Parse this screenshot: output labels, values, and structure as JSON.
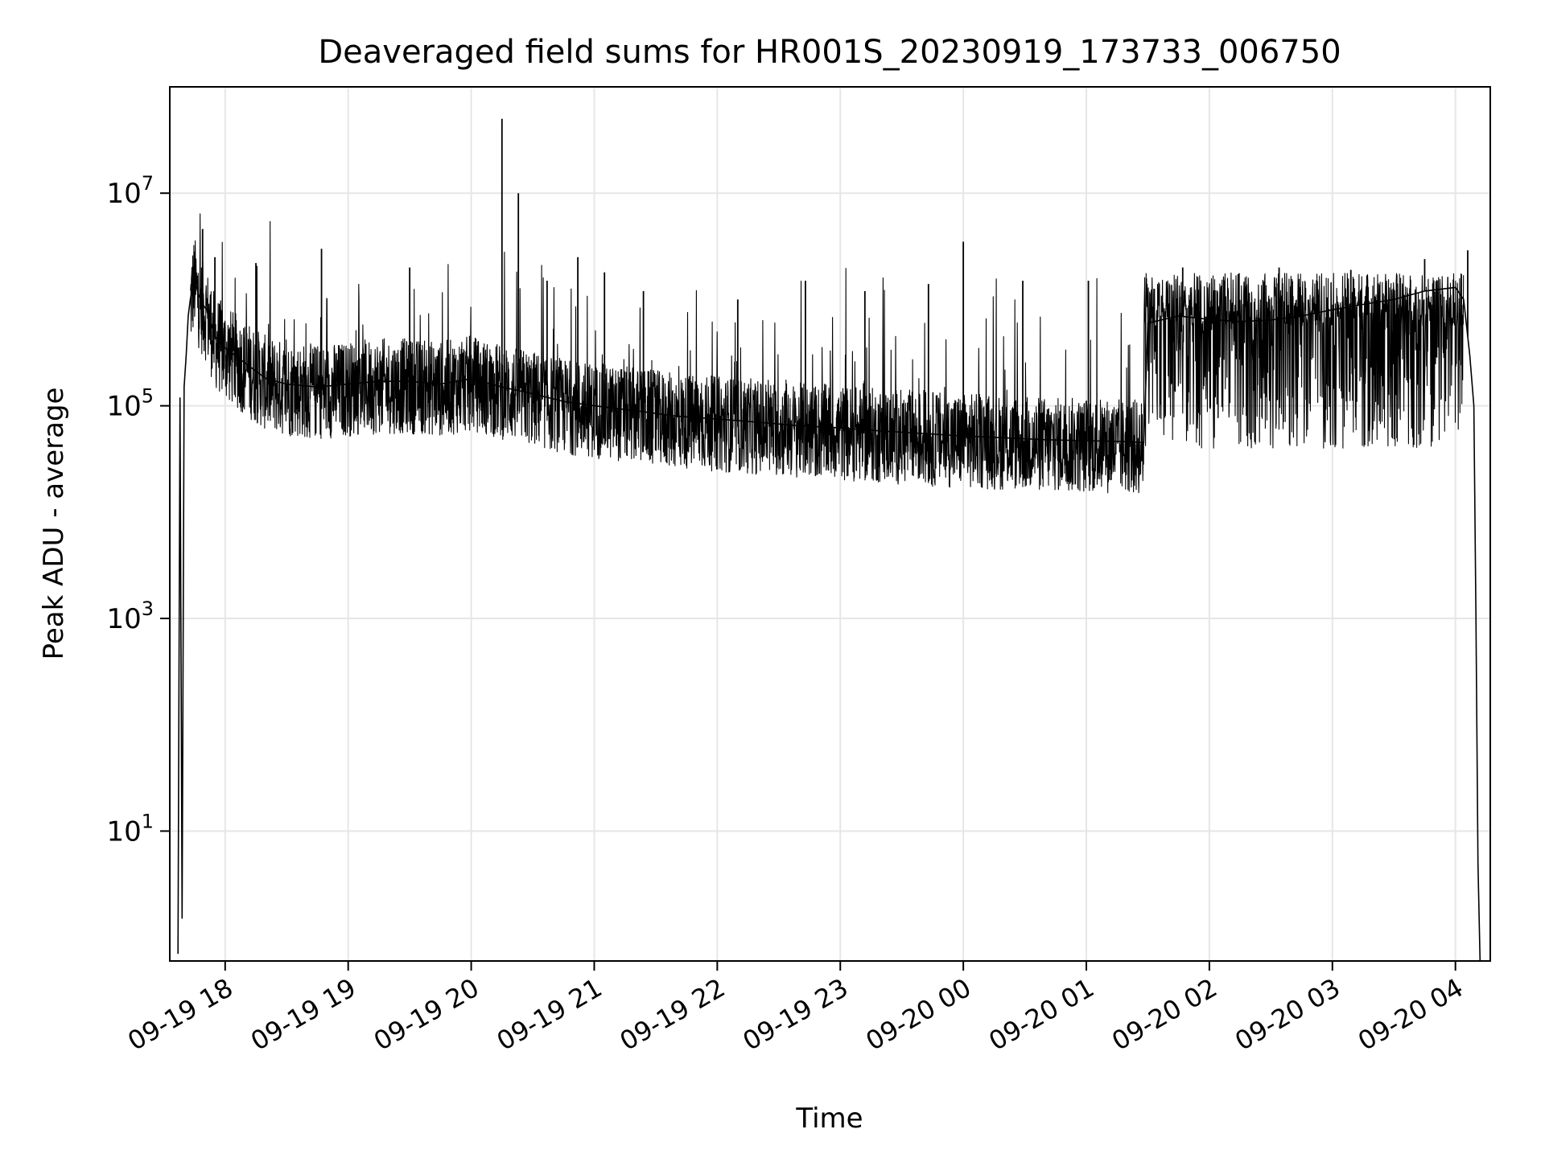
{
  "chart_data": {
    "type": "line",
    "title": "Deaveraged field sums for HR001S_20230919_173733_006750",
    "xlabel": "Time",
    "ylabel": "Peak ADU - average",
    "yscale": "log",
    "xlim": [
      "2023-09-19 17:33",
      "2023-09-20 04:17"
    ],
    "ylim": [
      0.6,
      100000000
    ],
    "grid": true,
    "legend": "none",
    "line_color": "#000000",
    "xticks": [
      "09-19 18",
      "09-19 19",
      "09-19 20",
      "09-19 21",
      "09-19 22",
      "09-19 23",
      "09-20 00",
      "09-20 01",
      "09-20 02",
      "09-20 03",
      "09-20 04"
    ],
    "tick_times": [
      "2023-09-19 18:00",
      "2023-09-19 19:00",
      "2023-09-19 20:00",
      "2023-09-19 21:00",
      "2023-09-19 22:00",
      "2023-09-19 23:00",
      "2023-09-20 00:00",
      "2023-09-20 01:00",
      "2023-09-20 02:00",
      "2023-09-20 03:00",
      "2023-09-20 04:00"
    ],
    "yticks": [
      {
        "base": "10",
        "exp": "1",
        "value": 10
      },
      {
        "base": "10",
        "exp": "3",
        "value": 1000
      },
      {
        "base": "10",
        "exp": "5",
        "value": 100000
      },
      {
        "base": "10",
        "exp": "7",
        "value": 10000000
      }
    ],
    "series": [
      {
        "x": [
          "2023-09-19 17:37",
          "2023-09-19 17:38",
          "2023-09-19 17:39",
          "2023-09-19 17:40",
          "2023-09-19 17:41",
          "2023-09-19 17:42",
          "2023-09-19 17:43",
          "2023-09-19 17:45",
          "2023-09-19 17:47",
          "2023-09-19 17:49",
          "2023-09-19 17:51",
          "2023-09-19 17:53",
          "2023-09-19 17:55",
          "2023-09-19 18:00",
          "2023-09-19 18:10",
          "2023-09-19 18:20",
          "2023-09-19 18:30",
          "2023-09-19 18:45",
          "2023-09-19 19:00",
          "2023-09-19 19:15",
          "2023-09-19 19:30",
          "2023-09-19 19:45",
          "2023-09-19 20:00",
          "2023-09-19 20:15",
          "2023-09-19 20:30",
          "2023-09-19 20:45",
          "2023-09-19 21:00",
          "2023-09-19 21:20",
          "2023-09-19 21:40",
          "2023-09-19 22:00",
          "2023-09-19 22:20",
          "2023-09-19 22:40",
          "2023-09-19 23:00",
          "2023-09-19 23:20",
          "2023-09-19 23:40",
          "2023-09-20 00:00",
          "2023-09-20 00:20",
          "2023-09-20 00:40",
          "2023-09-20 01:00",
          "2023-09-20 01:20",
          "2023-09-20 01:28",
          "2023-09-20 01:30",
          "2023-09-20 01:45",
          "2023-09-20 02:00",
          "2023-09-20 02:15",
          "2023-09-20 02:30",
          "2023-09-20 02:45",
          "2023-09-20 03:00",
          "2023-09-20 03:15",
          "2023-09-20 03:30",
          "2023-09-20 03:45",
          "2023-09-20 04:00",
          "2023-09-20 04:04",
          "2023-09-20 04:07",
          "2023-09-20 04:09",
          "2023-09-20 04:10",
          "2023-09-20 04:11",
          "2023-09-20 04:12"
        ],
        "y": [
          0.7,
          120000,
          1.5,
          150000,
          300000,
          700000,
          1000000,
          1600000,
          1100000,
          900000,
          800000,
          600000,
          450000,
          350000,
          250000,
          180000,
          160000,
          150000,
          160000,
          170000,
          170000,
          160000,
          180000,
          150000,
          130000,
          110000,
          100000,
          90000,
          80000,
          75000,
          70000,
          65000,
          62000,
          58000,
          55000,
          52000,
          50000,
          48000,
          47000,
          46000,
          45000,
          600000,
          700000,
          650000,
          620000,
          640000,
          700000,
          800000,
          900000,
          1000000,
          1200000,
          1300000,
          1000000,
          300000,
          100000,
          1000,
          5,
          0.6
        ]
      }
    ],
    "spikes": [
      {
        "x": "2023-09-19 17:49",
        "y": 4600000
      },
      {
        "x": "2023-09-19 17:55",
        "y": 2500000
      },
      {
        "x": "2023-09-19 18:15",
        "y": 2200000
      },
      {
        "x": "2023-09-19 18:47",
        "y": 3000000
      },
      {
        "x": "2023-09-19 19:30",
        "y": 2000000
      },
      {
        "x": "2023-09-19 20:15",
        "y": 50000000
      },
      {
        "x": "2023-09-19 20:23",
        "y": 10000000
      },
      {
        "x": "2023-09-19 20:37",
        "y": 1500000
      },
      {
        "x": "2023-09-19 20:52",
        "y": 2500000
      },
      {
        "x": "2023-09-19 21:05",
        "y": 1800000
      },
      {
        "x": "2023-09-19 21:24",
        "y": 1200000
      },
      {
        "x": "2023-09-19 22:10",
        "y": 1000000
      },
      {
        "x": "2023-09-19 22:43",
        "y": 1500000
      },
      {
        "x": "2023-09-19 23:12",
        "y": 1200000
      },
      {
        "x": "2023-09-19 23:43",
        "y": 1400000
      },
      {
        "x": "2023-09-20 00:00",
        "y": 3500000
      },
      {
        "x": "2023-09-20 00:29",
        "y": 1500000
      },
      {
        "x": "2023-09-20 01:01",
        "y": 1500000
      },
      {
        "x": "2023-09-20 01:47",
        "y": 2000000
      },
      {
        "x": "2023-09-20 02:34",
        "y": 2000000
      },
      {
        "x": "2023-09-20 03:09",
        "y": 1900000
      },
      {
        "x": "2023-09-20 03:45",
        "y": 2400000
      },
      {
        "x": "2023-09-20 04:06",
        "y": 2900000
      }
    ]
  }
}
